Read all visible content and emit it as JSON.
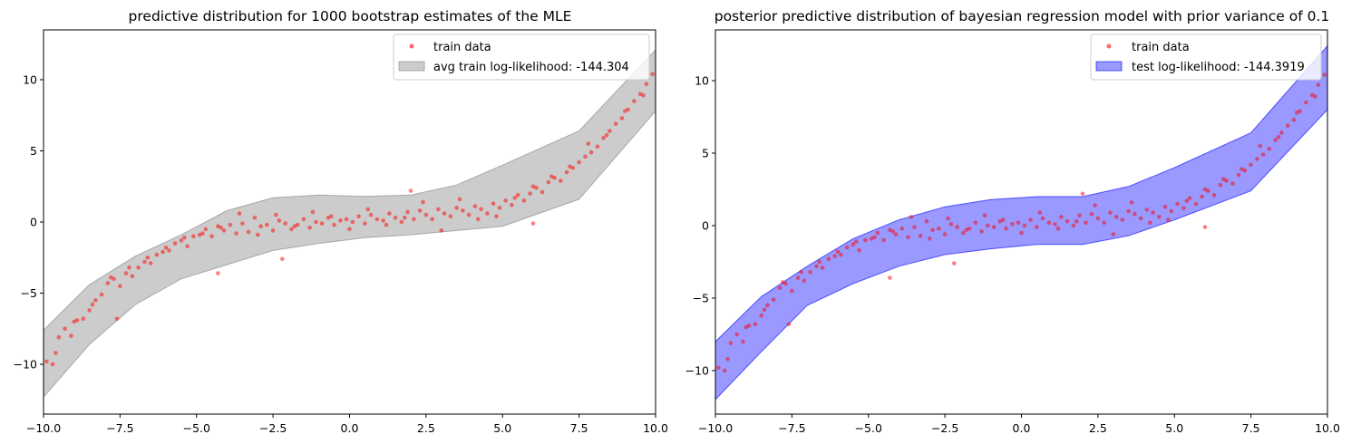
{
  "chart_data": [
    {
      "type": "scatter",
      "title": "predictive distribution for 1000 bootstrap estimates of the MLE",
      "xlabel": "",
      "ylabel": "",
      "xlim": [
        -10,
        10
      ],
      "ylim": [
        -13.5,
        13.5
      ],
      "xticks": [
        -10,
        -7.5,
        -5,
        -2.5,
        0,
        2.5,
        5,
        7.5,
        10
      ],
      "xtick_labels": [
        "−10.0",
        "−7.5",
        "−5.0",
        "−2.5",
        "0.0",
        "2.5",
        "5.0",
        "7.5",
        "10.0"
      ],
      "yticks": [
        -10,
        -5,
        0,
        5,
        10
      ],
      "ytick_labels": [
        "−10",
        "−5",
        "0",
        "5",
        "10"
      ],
      "legend_position": "top-right",
      "series": [
        {
          "name": "train data",
          "kind": "points",
          "color": "#ff0000",
          "alpha": 0.5
        },
        {
          "name": "avg train log-likelihood: -144.304",
          "kind": "band",
          "color": "#808080",
          "alpha": 0.4,
          "lower": [
            -12.3,
            -8.6,
            -5.8,
            -4.0,
            -3.0,
            -2.0,
            -1.5,
            -1.1,
            -0.9,
            -0.6,
            -0.3,
            1.6,
            7.8
          ],
          "upper": [
            -7.6,
            -4.4,
            -2.4,
            -0.9,
            0.8,
            1.7,
            1.9,
            1.8,
            1.9,
            2.6,
            4.0,
            6.4,
            12.1
          ]
        }
      ]
    },
    {
      "type": "scatter",
      "title": "posterior predictive distribution of bayesian regression model with prior variance of 0.1",
      "xlabel": "",
      "ylabel": "",
      "xlim": [
        -10,
        10
      ],
      "ylim": [
        -13.0,
        13.5
      ],
      "xticks": [
        -10,
        -7.5,
        -5,
        -2.5,
        0,
        2.5,
        5,
        7.5,
        10
      ],
      "xtick_labels": [
        "−10.0",
        "−7.5",
        "−5.0",
        "−2.5",
        "0.0",
        "2.5",
        "5.0",
        "7.5",
        "10.0"
      ],
      "yticks": [
        -10,
        -5,
        0,
        5,
        10
      ],
      "ytick_labels": [
        "−10",
        "−5",
        "0",
        "5",
        "10"
      ],
      "legend_position": "top-right",
      "series": [
        {
          "name": "train data",
          "kind": "points",
          "color": "#ff0000",
          "alpha": 0.5
        },
        {
          "name": "test log-likelihood: -144.3919",
          "kind": "band",
          "color": "#0000ff",
          "alpha": 0.4,
          "lower": [
            -12.0,
            -8.7,
            -5.5,
            -4.0,
            -2.8,
            -2.0,
            -1.6,
            -1.3,
            -1.3,
            -0.7,
            0.4,
            2.4,
            8.0
          ],
          "upper": [
            -8.0,
            -4.9,
            -2.8,
            -0.9,
            0.4,
            1.3,
            1.8,
            2.0,
            2.0,
            2.7,
            4.0,
            6.4,
            12.4
          ]
        }
      ]
    }
  ],
  "band_x": [
    -10,
    -8.5,
    -7,
    -5.5,
    -4,
    -2.5,
    -1,
    0.5,
    2,
    3.5,
    5,
    7.5,
    10
  ],
  "train_points": {
    "x": [
      -9.9,
      -9.7,
      -9.5,
      -9.3,
      -9.1,
      -8.9,
      -8.7,
      -8.5,
      -8.3,
      -8.1,
      -7.9,
      -7.7,
      -7.5,
      -7.3,
      -7.1,
      -6.9,
      -6.7,
      -6.5,
      -6.3,
      -6.1,
      -5.9,
      -5.7,
      -5.5,
      -5.3,
      -5.1,
      -4.9,
      -4.7,
      -4.5,
      -4.3,
      -4.1,
      -3.9,
      -3.7,
      -3.5,
      -3.3,
      -3.1,
      -2.9,
      -2.7,
      -2.5,
      -2.3,
      -2.1,
      -1.9,
      -1.7,
      -1.5,
      -1.3,
      -1.1,
      -0.9,
      -0.7,
      -0.5,
      -0.3,
      -0.1,
      0.1,
      0.3,
      0.5,
      0.7,
      0.9,
      1.1,
      1.3,
      1.5,
      1.7,
      1.9,
      2.1,
      2.3,
      2.5,
      2.7,
      2.9,
      3.1,
      3.3,
      3.5,
      3.7,
      3.9,
      4.1,
      4.3,
      4.5,
      4.7,
      4.9,
      5.1,
      5.3,
      5.5,
      5.7,
      5.9,
      6.1,
      6.3,
      6.5,
      6.7,
      6.9,
      7.1,
      7.3,
      7.5,
      7.7,
      7.9,
      8.1,
      8.3,
      8.5,
      8.7,
      8.9,
      9.1,
      9.3,
      9.5,
      9.7,
      9.9,
      -9.6,
      -9.0,
      -8.4,
      -7.8,
      -7.2,
      -6.6,
      -6.0,
      -5.4,
      -4.8,
      -4.2,
      -3.6,
      -3.0,
      -2.4,
      -1.8,
      -1.2,
      -0.6,
      0.0,
      0.6,
      1.2,
      1.8,
      2.4,
      3.0,
      3.6,
      4.2,
      4.8,
      5.4,
      6.0,
      6.6,
      7.2,
      7.8,
      8.4,
      9.0,
      9.6,
      -7.6,
      -4.3,
      -2.2,
      2.0,
      6.0
    ],
    "y": [
      -9.8,
      -10.0,
      -8.1,
      -7.5,
      -8.0,
      -6.9,
      -6.8,
      -6.2,
      -5.5,
      -5.1,
      -4.3,
      -4.0,
      -4.5,
      -3.6,
      -3.8,
      -3.2,
      -2.8,
      -2.9,
      -2.3,
      -2.1,
      -2.0,
      -1.5,
      -1.3,
      -1.7,
      -1.0,
      -0.9,
      -0.5,
      -1.0,
      -0.3,
      -0.6,
      -0.2,
      -0.8,
      -0.1,
      -0.7,
      0.3,
      -0.3,
      -0.2,
      -0.6,
      0.1,
      -0.1,
      -0.5,
      -0.2,
      0.2,
      -0.4,
      0.0,
      -0.1,
      0.3,
      -0.2,
      0.1,
      0.2,
      0.0,
      0.4,
      -0.1,
      0.5,
      0.2,
      0.1,
      0.6,
      0.3,
      0.0,
      0.7,
      0.2,
      0.8,
      0.5,
      0.2,
      0.9,
      0.6,
      0.4,
      1.0,
      0.8,
      0.5,
      1.1,
      0.9,
      0.6,
      1.3,
      1.0,
      1.5,
      1.2,
      1.9,
      1.5,
      2.0,
      2.4,
      2.1,
      2.8,
      3.1,
      2.9,
      3.5,
      3.8,
      4.2,
      4.6,
      4.9,
      5.3,
      5.9,
      6.4,
      6.9,
      7.3,
      7.9,
      8.5,
      9.0,
      9.7,
      10.4,
      -9.2,
      -7.0,
      -5.8,
      -3.9,
      -3.2,
      -2.5,
      -1.8,
      -1.1,
      -0.8,
      -0.4,
      0.6,
      -0.9,
      0.5,
      -0.3,
      0.7,
      0.4,
      -0.5,
      0.9,
      -0.2,
      0.3,
      1.4,
      -0.6,
      1.6,
      0.2,
      0.4,
      1.7,
      2.5,
      3.2,
      3.9,
      5.5,
      6.1,
      7.8,
      8.9,
      -6.8,
      -3.6,
      -2.6,
      2.2,
      -0.1
    ]
  }
}
